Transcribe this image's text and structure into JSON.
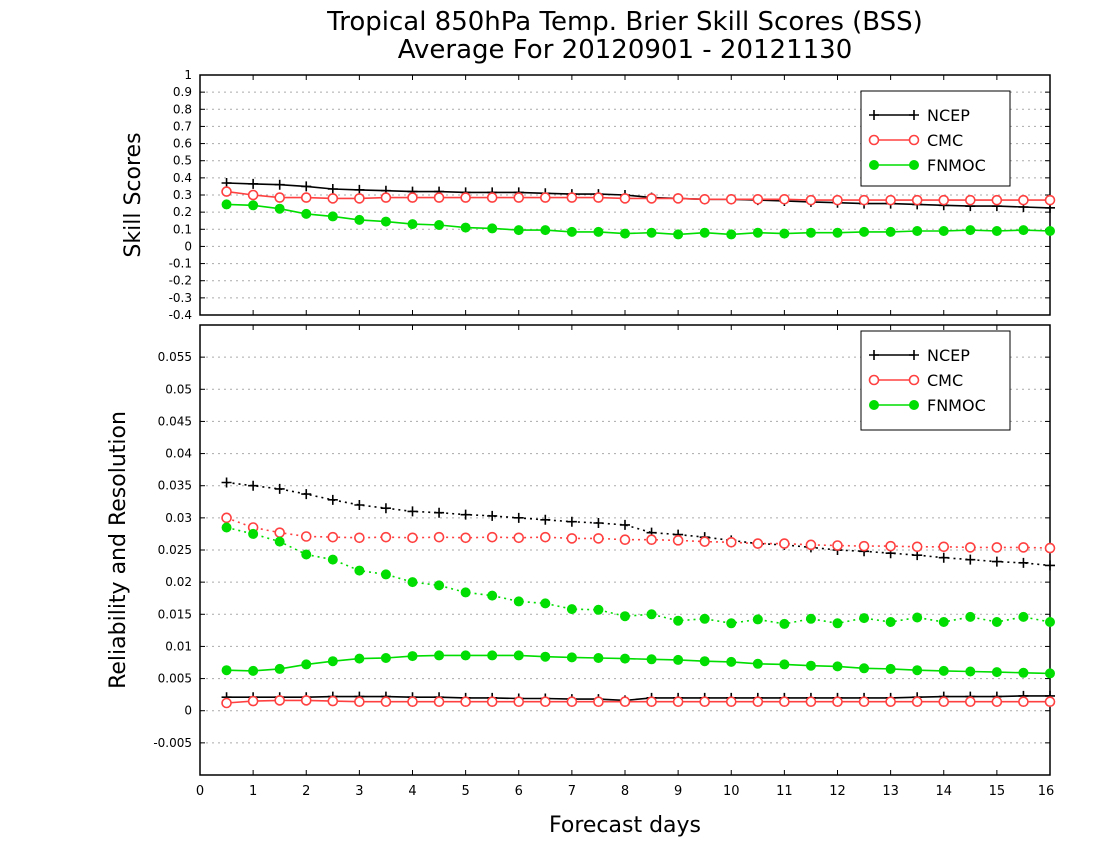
{
  "title_line1": "Tropical 850hPa Temp. Brier Skill Scores (BSS)",
  "title_line2": "Average For 20120901 - 20121130",
  "xlabel": "Forecast days",
  "colors": {
    "NCEP": "#000000",
    "CMC": "#ff4040",
    "FNMOC": "#00dd00",
    "grid": "#aaaaaa"
  },
  "chart_data": [
    {
      "type": "line",
      "ylabel": "Skill Scores",
      "xlim": [
        0,
        16
      ],
      "ylim": [
        -0.4,
        1
      ],
      "y_ticks": [
        -0.4,
        -0.3,
        -0.2,
        -0.1,
        0,
        0.1,
        0.2,
        0.3,
        0.4,
        0.5,
        0.6,
        0.7,
        0.8,
        0.9,
        1
      ],
      "y_tick_labels": [
        "-0.4",
        "-0.3",
        "-0.2",
        "-0.1",
        "0",
        "0.1",
        "0.2",
        "0.3",
        "0.4",
        "0.5",
        "0.6",
        "0.7",
        "0.8",
        "0.9",
        "1"
      ],
      "x_ticks": [
        0,
        1,
        2,
        3,
        4,
        5,
        6,
        7,
        8,
        9,
        10,
        11,
        12,
        13,
        14,
        15,
        16
      ],
      "grid": true,
      "legend_position": "top-right",
      "legend": [
        "NCEP",
        "CMC",
        "FNMOC"
      ],
      "x": [
        0.5,
        1,
        1.5,
        2,
        2.5,
        3,
        3.5,
        4,
        4.5,
        5,
        5.5,
        6,
        6.5,
        7,
        7.5,
        8,
        8.5,
        9,
        9.5,
        10,
        10.5,
        11,
        11.5,
        12,
        12.5,
        13,
        13.5,
        14,
        14.5,
        15,
        15.5,
        16
      ],
      "series": [
        {
          "name": "NCEP",
          "style": "solid",
          "marker": "plus",
          "values": [
            0.37,
            0.365,
            0.36,
            0.35,
            0.335,
            0.33,
            0.325,
            0.32,
            0.32,
            0.315,
            0.315,
            0.315,
            0.31,
            0.305,
            0.305,
            0.3,
            0.285,
            0.28,
            0.275,
            0.275,
            0.27,
            0.265,
            0.26,
            0.255,
            0.25,
            0.25,
            0.245,
            0.24,
            0.235,
            0.235,
            0.23,
            0.225
          ]
        },
        {
          "name": "CMC",
          "style": "solid",
          "marker": "open-circle",
          "values": [
            0.32,
            0.3,
            0.285,
            0.285,
            0.28,
            0.28,
            0.285,
            0.285,
            0.285,
            0.285,
            0.285,
            0.285,
            0.285,
            0.285,
            0.285,
            0.28,
            0.28,
            0.28,
            0.275,
            0.275,
            0.275,
            0.275,
            0.27,
            0.27,
            0.27,
            0.27,
            0.27,
            0.27,
            0.27,
            0.27,
            0.27,
            0.27
          ]
        },
        {
          "name": "FNMOC",
          "style": "solid",
          "marker": "filled-circle",
          "values": [
            0.245,
            0.24,
            0.22,
            0.19,
            0.175,
            0.155,
            0.145,
            0.13,
            0.125,
            0.11,
            0.105,
            0.095,
            0.095,
            0.085,
            0.085,
            0.075,
            0.08,
            0.07,
            0.08,
            0.07,
            0.08,
            0.075,
            0.08,
            0.08,
            0.085,
            0.085,
            0.09,
            0.09,
            0.095,
            0.09,
            0.095,
            0.09
          ]
        }
      ]
    },
    {
      "type": "line",
      "ylabel": "Reliability and Resolution",
      "xlim": [
        0,
        16
      ],
      "ylim": [
        -0.01,
        0.06
      ],
      "y_ticks": [
        -0.005,
        0,
        0.005,
        0.01,
        0.015,
        0.02,
        0.025,
        0.03,
        0.035,
        0.04,
        0.045,
        0.05,
        0.055
      ],
      "y_tick_labels": [
        "-0.005",
        "0",
        "0.005",
        "0.01",
        "0.015",
        "0.02",
        "0.025",
        "0.03",
        "0.035",
        "0.04",
        "0.045",
        "0.05",
        "0.055"
      ],
      "x_ticks": [
        0,
        1,
        2,
        3,
        4,
        5,
        6,
        7,
        8,
        9,
        10,
        11,
        12,
        13,
        14,
        15,
        16
      ],
      "x_tick_labels": [
        "0",
        "1",
        "2",
        "3",
        "4",
        "5",
        "6",
        "7",
        "8",
        "9",
        "10",
        "11",
        "12",
        "13",
        "14",
        "15",
        "16"
      ],
      "grid": true,
      "legend_position": "top-right",
      "legend": [
        "NCEP",
        "CMC",
        "FNMOC"
      ],
      "x": [
        0.5,
        1,
        1.5,
        2,
        2.5,
        3,
        3.5,
        4,
        4.5,
        5,
        5.5,
        6,
        6.5,
        7,
        7.5,
        8,
        8.5,
        9,
        9.5,
        10,
        10.5,
        11,
        11.5,
        12,
        12.5,
        13,
        13.5,
        14,
        14.5,
        15,
        15.5,
        16
      ],
      "series": [
        {
          "name": "NCEP",
          "style": "dotted",
          "marker": "plus",
          "values": [
            0.0355,
            0.035,
            0.0345,
            0.0337,
            0.0328,
            0.032,
            0.0315,
            0.031,
            0.0308,
            0.0305,
            0.0303,
            0.03,
            0.0297,
            0.0294,
            0.0292,
            0.0289,
            0.0277,
            0.0274,
            0.027,
            0.0265,
            0.026,
            0.0258,
            0.0254,
            0.025,
            0.0248,
            0.0245,
            0.0242,
            0.0238,
            0.0235,
            0.0232,
            0.023,
            0.0226
          ]
        },
        {
          "name": "CMC",
          "style": "dotted",
          "marker": "open-circle",
          "values": [
            0.03,
            0.0285,
            0.0277,
            0.0271,
            0.027,
            0.0269,
            0.027,
            0.0269,
            0.027,
            0.0269,
            0.027,
            0.0269,
            0.027,
            0.0268,
            0.0268,
            0.0266,
            0.0266,
            0.0265,
            0.0263,
            0.0262,
            0.026,
            0.026,
            0.0258,
            0.0257,
            0.0256,
            0.0256,
            0.0255,
            0.0255,
            0.0254,
            0.0254,
            0.0254,
            0.0253
          ]
        },
        {
          "name": "FNMOC",
          "style": "dotted",
          "marker": "filled-circle",
          "values": [
            0.0285,
            0.0275,
            0.0263,
            0.0243,
            0.0235,
            0.0218,
            0.0212,
            0.02,
            0.0195,
            0.0184,
            0.0179,
            0.017,
            0.0167,
            0.0158,
            0.0157,
            0.0147,
            0.015,
            0.014,
            0.0143,
            0.0136,
            0.0142,
            0.0135,
            0.0143,
            0.0136,
            0.0144,
            0.0138,
            0.0145,
            0.0138,
            0.0146,
            0.0138,
            0.0146,
            0.0138
          ]
        },
        {
          "name": "NCEP",
          "style": "solid",
          "marker": "plus",
          "values": [
            0.0021,
            0.0021,
            0.0021,
            0.0021,
            0.0022,
            0.0022,
            0.0022,
            0.0021,
            0.0021,
            0.002,
            0.002,
            0.0019,
            0.0019,
            0.0018,
            0.0018,
            0.0016,
            0.002,
            0.002,
            0.002,
            0.002,
            0.002,
            0.002,
            0.002,
            0.002,
            0.002,
            0.002,
            0.0021,
            0.0022,
            0.0022,
            0.0022,
            0.0023,
            0.0023
          ]
        },
        {
          "name": "CMC",
          "style": "solid",
          "marker": "open-circle",
          "values": [
            0.0012,
            0.0015,
            0.0016,
            0.0016,
            0.0015,
            0.0014,
            0.0014,
            0.0014,
            0.0014,
            0.0014,
            0.0014,
            0.0014,
            0.0014,
            0.0014,
            0.0014,
            0.0014,
            0.0014,
            0.0014,
            0.0014,
            0.0014,
            0.0014,
            0.0014,
            0.0014,
            0.0014,
            0.0014,
            0.0014,
            0.0014,
            0.0014,
            0.0014,
            0.0014,
            0.0014,
            0.0014
          ]
        },
        {
          "name": "FNMOC",
          "style": "solid",
          "marker": "filled-circle",
          "values": [
            0.0063,
            0.0062,
            0.0065,
            0.0072,
            0.0077,
            0.0081,
            0.0082,
            0.0085,
            0.0086,
            0.0086,
            0.0086,
            0.0086,
            0.0084,
            0.0083,
            0.0082,
            0.0081,
            0.008,
            0.0079,
            0.0077,
            0.0076,
            0.0073,
            0.0072,
            0.007,
            0.0069,
            0.0066,
            0.0065,
            0.0063,
            0.0062,
            0.0061,
            0.006,
            0.0059,
            0.0058
          ]
        }
      ]
    }
  ]
}
